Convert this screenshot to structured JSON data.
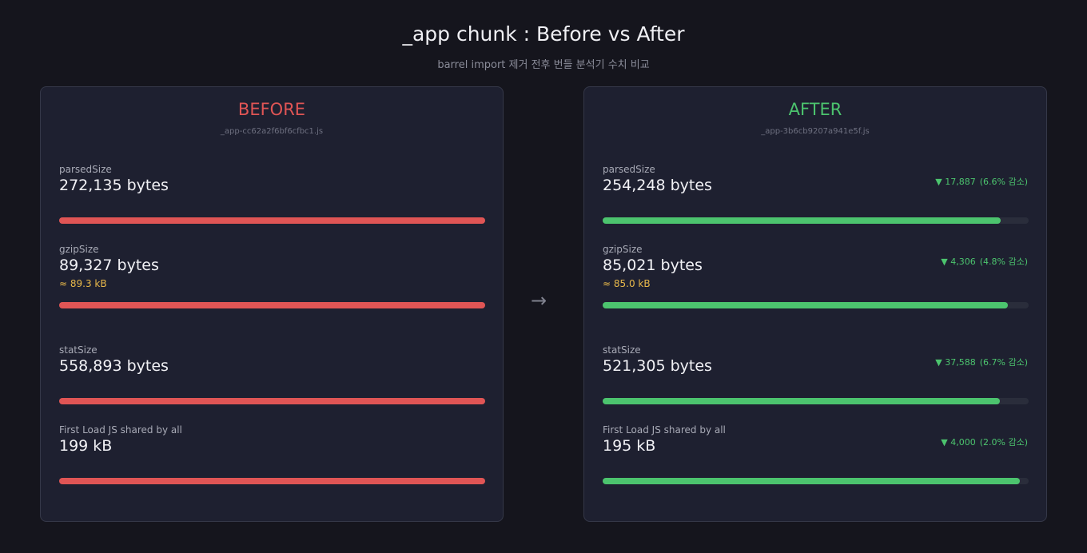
{
  "header": {
    "title": "_app chunk : Before vs After",
    "subtitle": "barrel import 제거 전후 번들 분석기 수치 비교"
  },
  "arrow": "→",
  "panels": [
    {
      "label": "BEFORE",
      "file": "_app-cc62a2f6bf6cfbc1.js",
      "color": "#e05555",
      "metrics": [
        {
          "name": "parsedSize",
          "value": {
            "value": 272135,
            "label": "272,135 bytes"
          }
        },
        {
          "name": "gzipSize",
          "value": {
            "value": 89327,
            "label": "89,327 bytes"
          },
          "approx": "≈ 89.3 kB"
        },
        {
          "name": "statSize",
          "value": {
            "value": 558893,
            "label": "558,893 bytes"
          }
        },
        {
          "name": "First Load JS shared by all",
          "value": {
            "value": 199,
            "label": "199 kB"
          }
        }
      ]
    },
    {
      "label": "AFTER",
      "file": "_app-3b6cb9207a941e5f.js",
      "color": "#4cc46e",
      "metrics": [
        {
          "name": "parsedSize",
          "value": {
            "value": 254248,
            "label": "254,248 bytes"
          },
          "delta": "▼ 17,887",
          "change": "(6.6% 감소)"
        },
        {
          "name": "gzipSize",
          "value": {
            "value": 85021,
            "label": "85,021 bytes"
          },
          "approx": "≈ 85.0 kB",
          "delta": "▼ 4,306",
          "change": "(4.8% 감소)"
        },
        {
          "name": "statSize",
          "value": {
            "value": 521305,
            "label": "521,305 bytes"
          },
          "delta": "▼ 37,588",
          "change": "(6.7% 감소)"
        },
        {
          "name": "First Load JS shared by all",
          "value": {
            "value": 195,
            "label": "195 kB"
          },
          "delta": "▼ 4,000",
          "change": "(2.0% 감소)"
        }
      ]
    }
  ]
}
